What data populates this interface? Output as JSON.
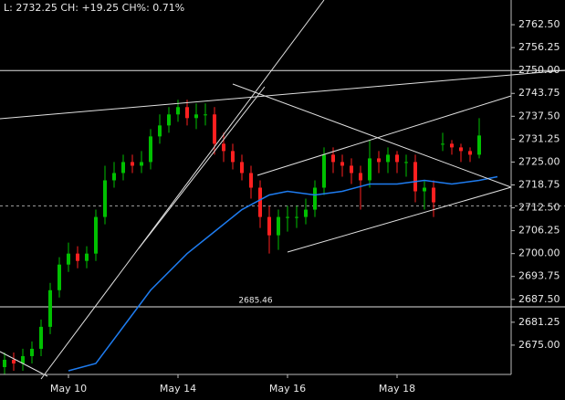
{
  "chart_data": {
    "type": "candlestick",
    "header": "L: 2732.25 CH: +19.25 CH%: 0.71%",
    "xlim": [
      -0.5,
      55.5
    ],
    "xticks": [
      {
        "value": 7,
        "label": "May 10"
      },
      {
        "value": 19,
        "label": "May 14"
      },
      {
        "value": 31,
        "label": "May 16"
      },
      {
        "value": 43,
        "label": "May 18"
      }
    ],
    "ylim": [
      2667,
      2769.25
    ],
    "yticks": [
      {
        "value": 2675,
        "label": "2675.00"
      },
      {
        "value": 2681.25,
        "label": "2681.25"
      },
      {
        "value": 2687.5,
        "label": "2687.50"
      },
      {
        "value": 2693.75,
        "label": "2693.75"
      },
      {
        "value": 2700,
        "label": "2700.00"
      },
      {
        "value": 2706.25,
        "label": "2706.25"
      },
      {
        "value": 2712.5,
        "label": "2712.50"
      },
      {
        "value": 2718.75,
        "label": "2718.75"
      },
      {
        "value": 2725,
        "label": "2725.00"
      },
      {
        "value": 2731.25,
        "label": "2731.25"
      },
      {
        "value": 2737.5,
        "label": "2737.50"
      },
      {
        "value": 2743.75,
        "label": "2743.75"
      },
      {
        "value": 2750,
        "label": "2750.00"
      },
      {
        "value": 2756.25,
        "label": "2756.25"
      },
      {
        "value": 2762.5,
        "label": "2762.50"
      }
    ],
    "up_color": "#00c000",
    "down_color": "#ff2020",
    "open": [
      2669,
      2671,
      2670,
      2672,
      2674,
      2680,
      2690,
      2697,
      2700,
      2698,
      2700,
      2710,
      2720,
      2722,
      2725,
      2724,
      2725,
      2732,
      2735,
      2738,
      2740,
      2737,
      2738,
      2738,
      2730,
      2728,
      2725,
      2722,
      2718,
      2710,
      2705,
      2710,
      2710,
      2710,
      2712,
      2718,
      2727,
      2725,
      2724,
      2722,
      2720,
      2726,
      2725,
      2727,
      2725,
      2725,
      2717,
      2718,
      2730,
      2730,
      2729,
      2728,
      2727
    ],
    "high": [
      2673,
      2673,
      2674,
      2676,
      2682,
      2692,
      2699,
      2703,
      2702,
      2702,
      2712,
      2724,
      2725,
      2727,
      2727,
      2728,
      2734,
      2738,
      2740,
      2742,
      2742,
      2741,
      2741,
      2740,
      2733,
      2730,
      2727,
      2724,
      2720,
      2713,
      2712,
      2713,
      2713,
      2715,
      2720,
      2729,
      2729,
      2727,
      2726,
      2724,
      2731,
      2728,
      2729,
      2728,
      2727,
      2727,
      2720,
      2720,
      2733,
      2731,
      2730,
      2729,
      2737
    ],
    "low": [
      2667,
      2668,
      2668,
      2670,
      2672,
      2678,
      2688,
      2695,
      2696,
      2696,
      2698,
      2708,
      2718,
      2720,
      2722,
      2722,
      2723,
      2730,
      2733,
      2736,
      2735,
      2734,
      2735,
      2727,
      2725,
      2723,
      2720,
      2715,
      2707,
      2700,
      2701,
      2706,
      2707,
      2708,
      2710,
      2716,
      2722,
      2721,
      2719,
      2712,
      2718,
      2722,
      2722,
      2722,
      2721,
      2714,
      2712,
      2710,
      2728,
      2727,
      2725,
      2725,
      2726
    ],
    "close": [
      2671,
      2670,
      2672,
      2674,
      2680,
      2690,
      2697,
      2700,
      2698,
      2700,
      2710,
      2720,
      2722,
      2725,
      2724,
      2725,
      2732,
      2735,
      2738,
      2740,
      2737,
      2738,
      2738,
      2730,
      2728,
      2725,
      2722,
      2718,
      2710,
      2705,
      2710,
      2710,
      2710,
      2712,
      2718,
      2727,
      2725,
      2724,
      2722,
      2720,
      2726,
      2725,
      2727,
      2725,
      2725,
      2717,
      2718,
      2714,
      2730,
      2729,
      2728,
      2727,
      2732.25
    ],
    "average": {
      "color": "#1e7cf0",
      "x": [
        7,
        10,
        13,
        16,
        20,
        23,
        26,
        29,
        31,
        34,
        37,
        40,
        43,
        46,
        49,
        52,
        54
      ],
      "values": [
        2668,
        2670,
        2680,
        2690,
        2700,
        2706,
        2712,
        2716,
        2717,
        2716,
        2717,
        2719,
        2719,
        2720,
        2719,
        2720,
        2721
      ]
    },
    "hlines": [
      2750,
      2685.46
    ],
    "dashed_level": 2713
  }
}
